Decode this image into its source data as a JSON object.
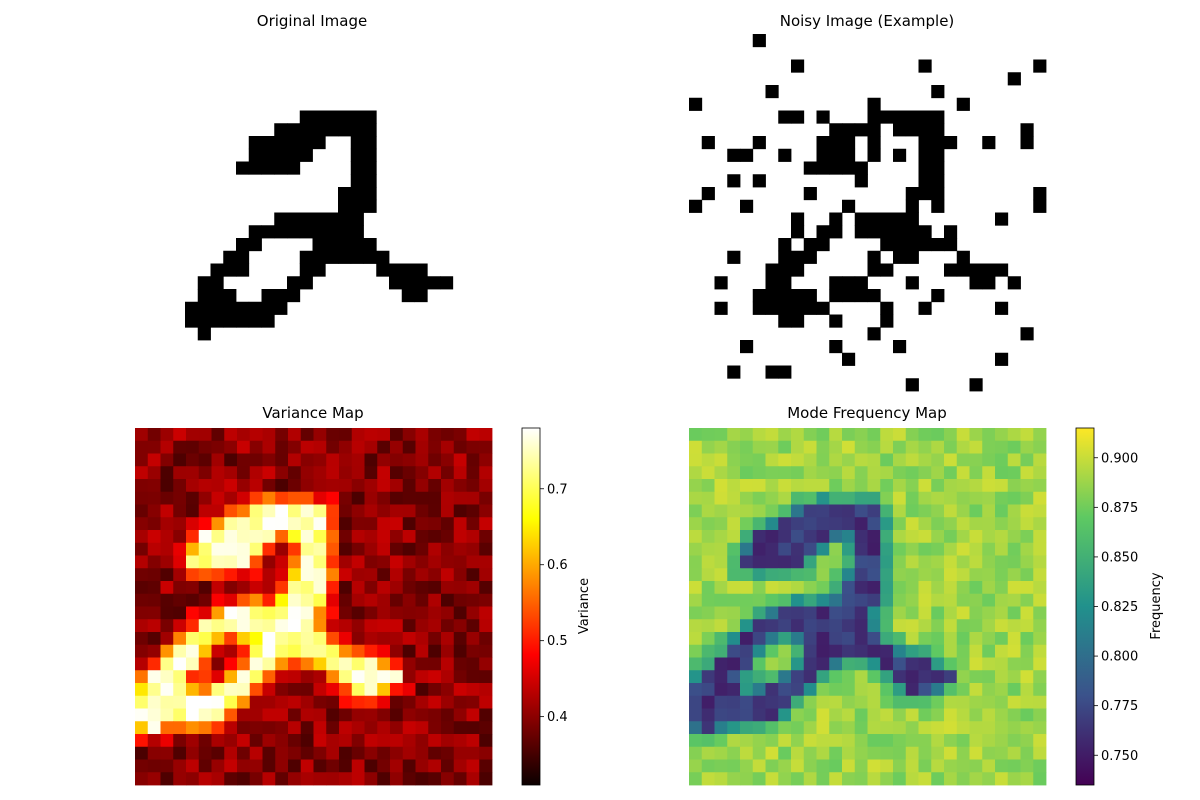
{
  "chart_data": [
    {
      "type": "heatmap",
      "title": "Original Image",
      "grid": false,
      "colormap": "binary",
      "rows": 28,
      "cols": 28,
      "black_cells": [
        [
          6,
          9
        ],
        [
          6,
          10
        ],
        [
          6,
          11
        ],
        [
          6,
          12
        ],
        [
          6,
          13
        ],
        [
          6,
          14
        ],
        [
          7,
          7
        ],
        [
          7,
          8
        ],
        [
          7,
          9
        ],
        [
          7,
          10
        ],
        [
          7,
          11
        ],
        [
          7,
          12
        ],
        [
          7,
          13
        ],
        [
          7,
          14
        ],
        [
          8,
          5
        ],
        [
          8,
          6
        ],
        [
          8,
          7
        ],
        [
          8,
          8
        ],
        [
          8,
          9
        ],
        [
          8,
          10
        ],
        [
          8,
          13
        ],
        [
          8,
          14
        ],
        [
          9,
          5
        ],
        [
          9,
          6
        ],
        [
          9,
          7
        ],
        [
          9,
          8
        ],
        [
          9,
          9
        ],
        [
          9,
          13
        ],
        [
          9,
          14
        ],
        [
          10,
          4
        ],
        [
          10,
          5
        ],
        [
          10,
          6
        ],
        [
          10,
          7
        ],
        [
          10,
          8
        ],
        [
          10,
          13
        ],
        [
          10,
          14
        ],
        [
          11,
          13
        ],
        [
          11,
          14
        ],
        [
          12,
          12
        ],
        [
          12,
          13
        ],
        [
          12,
          14
        ],
        [
          13,
          12
        ],
        [
          13,
          13
        ],
        [
          13,
          14
        ],
        [
          14,
          7
        ],
        [
          14,
          8
        ],
        [
          14,
          9
        ],
        [
          14,
          10
        ],
        [
          14,
          11
        ],
        [
          14,
          12
        ],
        [
          14,
          13
        ],
        [
          15,
          5
        ],
        [
          15,
          6
        ],
        [
          15,
          7
        ],
        [
          15,
          8
        ],
        [
          15,
          9
        ],
        [
          15,
          10
        ],
        [
          15,
          11
        ],
        [
          15,
          12
        ],
        [
          15,
          13
        ],
        [
          16,
          4
        ],
        [
          16,
          5
        ],
        [
          16,
          10
        ],
        [
          16,
          11
        ],
        [
          16,
          12
        ],
        [
          16,
          13
        ],
        [
          16,
          14
        ],
        [
          17,
          3
        ],
        [
          17,
          4
        ],
        [
          17,
          9
        ],
        [
          17,
          10
        ],
        [
          17,
          11
        ],
        [
          17,
          12
        ],
        [
          17,
          13
        ],
        [
          17,
          14
        ],
        [
          17,
          15
        ],
        [
          18,
          2
        ],
        [
          18,
          3
        ],
        [
          18,
          4
        ],
        [
          18,
          9
        ],
        [
          18,
          10
        ],
        [
          18,
          15
        ],
        [
          18,
          16
        ],
        [
          18,
          17
        ],
        [
          18,
          18
        ],
        [
          19,
          1
        ],
        [
          19,
          2
        ],
        [
          19,
          8
        ],
        [
          19,
          9
        ],
        [
          19,
          16
        ],
        [
          19,
          17
        ],
        [
          19,
          18
        ],
        [
          19,
          19
        ],
        [
          19,
          20
        ],
        [
          20,
          1
        ],
        [
          20,
          2
        ],
        [
          20,
          3
        ],
        [
          20,
          6
        ],
        [
          20,
          7
        ],
        [
          20,
          8
        ],
        [
          20,
          17
        ],
        [
          20,
          18
        ],
        [
          21,
          0
        ],
        [
          21,
          1
        ],
        [
          21,
          2
        ],
        [
          21,
          3
        ],
        [
          21,
          4
        ],
        [
          21,
          5
        ],
        [
          21,
          6
        ],
        [
          21,
          7
        ],
        [
          22,
          0
        ],
        [
          22,
          1
        ],
        [
          22,
          2
        ],
        [
          22,
          3
        ],
        [
          22,
          4
        ],
        [
          22,
          5
        ],
        [
          22,
          6
        ],
        [
          23,
          1
        ]
      ]
    },
    {
      "type": "heatmap",
      "title": "Noisy Image (Example)",
      "grid": false,
      "colormap": "binary",
      "rows": 28,
      "cols": 28,
      "black_cells": [
        [
          0,
          5
        ],
        [
          2,
          8
        ],
        [
          2,
          18
        ],
        [
          2,
          27
        ],
        [
          3,
          25
        ],
        [
          4,
          6
        ],
        [
          4,
          19
        ],
        [
          5,
          0
        ],
        [
          5,
          14
        ],
        [
          5,
          21
        ],
        [
          6,
          7
        ],
        [
          6,
          8
        ],
        [
          6,
          10
        ],
        [
          6,
          14
        ],
        [
          6,
          15
        ],
        [
          6,
          16
        ],
        [
          6,
          17
        ],
        [
          6,
          18
        ],
        [
          6,
          19
        ],
        [
          7,
          11
        ],
        [
          7,
          12
        ],
        [
          7,
          13
        ],
        [
          7,
          14
        ],
        [
          7,
          16
        ],
        [
          7,
          17
        ],
        [
          7,
          18
        ],
        [
          7,
          19
        ],
        [
          7,
          26
        ],
        [
          8,
          1
        ],
        [
          8,
          5
        ],
        [
          8,
          10
        ],
        [
          8,
          11
        ],
        [
          8,
          12
        ],
        [
          8,
          14
        ],
        [
          8,
          18
        ],
        [
          8,
          19
        ],
        [
          8,
          20
        ],
        [
          8,
          23
        ],
        [
          8,
          26
        ],
        [
          9,
          3
        ],
        [
          9,
          4
        ],
        [
          9,
          7
        ],
        [
          9,
          10
        ],
        [
          9,
          11
        ],
        [
          9,
          12
        ],
        [
          9,
          14
        ],
        [
          9,
          16
        ],
        [
          9,
          18
        ],
        [
          9,
          19
        ],
        [
          10,
          9
        ],
        [
          10,
          10
        ],
        [
          10,
          11
        ],
        [
          10,
          12
        ],
        [
          10,
          13
        ],
        [
          10,
          18
        ],
        [
          10,
          19
        ],
        [
          11,
          3
        ],
        [
          11,
          5
        ],
        [
          11,
          13
        ],
        [
          11,
          18
        ],
        [
          11,
          19
        ],
        [
          12,
          1
        ],
        [
          12,
          9
        ],
        [
          12,
          17
        ],
        [
          12,
          18
        ],
        [
          12,
          19
        ],
        [
          12,
          27
        ],
        [
          13,
          0
        ],
        [
          13,
          4
        ],
        [
          13,
          12
        ],
        [
          13,
          17
        ],
        [
          13,
          19
        ],
        [
          13,
          27
        ],
        [
          14,
          8
        ],
        [
          14,
          11
        ],
        [
          14,
          13
        ],
        [
          14,
          14
        ],
        [
          14,
          15
        ],
        [
          14,
          16
        ],
        [
          14,
          17
        ],
        [
          14,
          24
        ],
        [
          15,
          8
        ],
        [
          15,
          10
        ],
        [
          15,
          11
        ],
        [
          15,
          13
        ],
        [
          15,
          14
        ],
        [
          15,
          15
        ],
        [
          15,
          16
        ],
        [
          15,
          17
        ],
        [
          15,
          18
        ],
        [
          15,
          20
        ],
        [
          16,
          7
        ],
        [
          16,
          9
        ],
        [
          16,
          10
        ],
        [
          16,
          15
        ],
        [
          16,
          16
        ],
        [
          16,
          17
        ],
        [
          16,
          18
        ],
        [
          16,
          19
        ],
        [
          16,
          20
        ],
        [
          17,
          3
        ],
        [
          17,
          7
        ],
        [
          17,
          8
        ],
        [
          17,
          9
        ],
        [
          17,
          14
        ],
        [
          17,
          16
        ],
        [
          17,
          17
        ],
        [
          17,
          21
        ],
        [
          18,
          6
        ],
        [
          18,
          7
        ],
        [
          18,
          8
        ],
        [
          18,
          14
        ],
        [
          18,
          15
        ],
        [
          18,
          20
        ],
        [
          18,
          21
        ],
        [
          18,
          22
        ],
        [
          18,
          23
        ],
        [
          18,
          24
        ],
        [
          19,
          2
        ],
        [
          19,
          6
        ],
        [
          19,
          7
        ],
        [
          19,
          11
        ],
        [
          19,
          12
        ],
        [
          19,
          13
        ],
        [
          19,
          17
        ],
        [
          19,
          22
        ],
        [
          19,
          23
        ],
        [
          19,
          25
        ],
        [
          20,
          5
        ],
        [
          20,
          6
        ],
        [
          20,
          7
        ],
        [
          20,
          8
        ],
        [
          20,
          9
        ],
        [
          20,
          11
        ],
        [
          20,
          12
        ],
        [
          20,
          13
        ],
        [
          20,
          14
        ],
        [
          20,
          19
        ],
        [
          21,
          2
        ],
        [
          21,
          5
        ],
        [
          21,
          6
        ],
        [
          21,
          7
        ],
        [
          21,
          8
        ],
        [
          21,
          9
        ],
        [
          21,
          10
        ],
        [
          21,
          15
        ],
        [
          21,
          18
        ],
        [
          21,
          24
        ],
        [
          22,
          7
        ],
        [
          22,
          8
        ],
        [
          22,
          11
        ],
        [
          22,
          15
        ],
        [
          23,
          14
        ],
        [
          23,
          26
        ],
        [
          24,
          4
        ],
        [
          24,
          11
        ],
        [
          24,
          16
        ],
        [
          25,
          12
        ],
        [
          25,
          24
        ],
        [
          26,
          3
        ],
        [
          26,
          6
        ],
        [
          26,
          7
        ],
        [
          27,
          17
        ],
        [
          27,
          22
        ]
      ]
    },
    {
      "type": "heatmap",
      "title": "Variance Map",
      "grid": false,
      "colormap": "hot",
      "rows": 28,
      "cols": 28,
      "colorbar": {
        "label": "Variance",
        "min": 0.31,
        "max": 0.78,
        "ticks": [
          "0.4",
          "0.5",
          "0.6",
          "0.7"
        ],
        "tick_values": [
          0.4,
          0.5,
          0.6,
          0.7
        ]
      }
    },
    {
      "type": "heatmap",
      "title": "Mode Frequency Map",
      "grid": false,
      "colormap": "viridis",
      "rows": 28,
      "cols": 28,
      "colorbar": {
        "label": "Frequency",
        "min": 0.735,
        "max": 0.915,
        "ticks": [
          "0.750",
          "0.775",
          "0.800",
          "0.825",
          "0.850",
          "0.875",
          "0.900"
        ],
        "tick_values": [
          0.75,
          0.775,
          0.8,
          0.825,
          0.85,
          0.875,
          0.9
        ]
      }
    }
  ]
}
